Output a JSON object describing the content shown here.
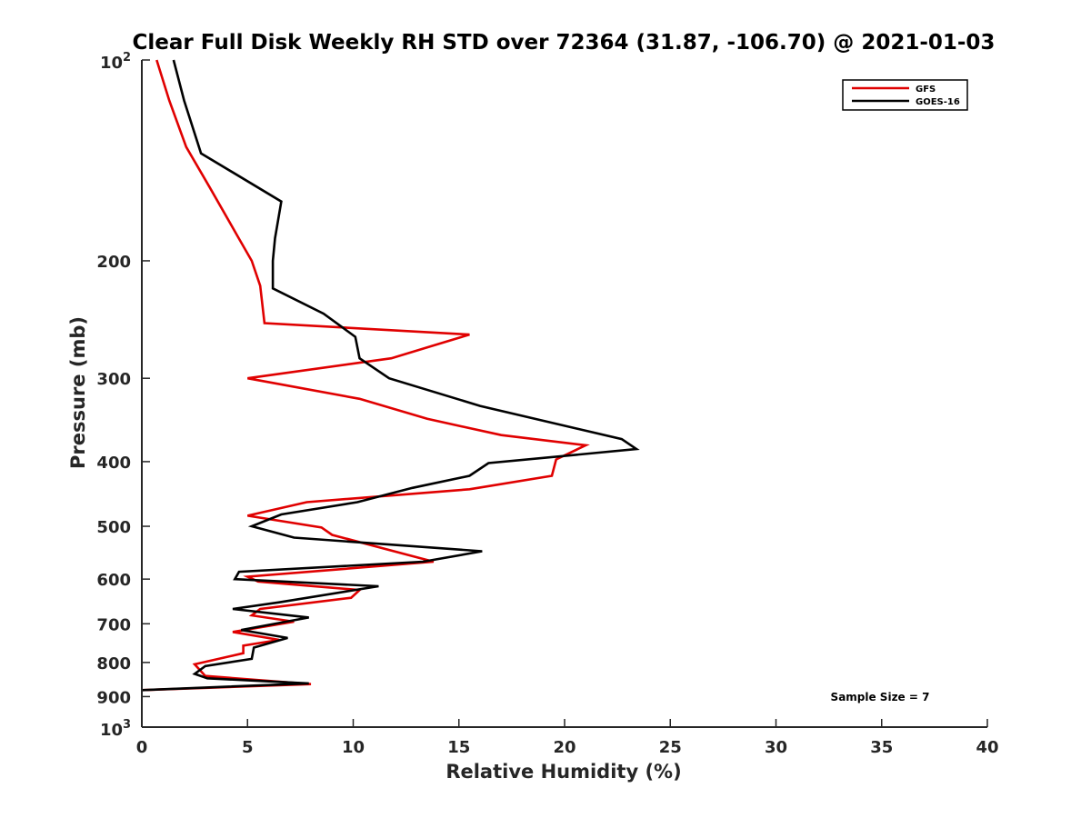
{
  "chart_data": {
    "type": "line",
    "title": "Clear Full Disk Weekly RH STD over 72364 (31.87, -106.70) @ 2021-01-03",
    "xlabel": "Relative Humidity (%)",
    "ylabel": "Pressure (mb)",
    "xlim": [
      0,
      40
    ],
    "ylim": [
      100,
      1000
    ],
    "y_scale": "log",
    "y_reversed": true,
    "x_ticks": [
      "0",
      "5",
      "10",
      "15",
      "20",
      "25",
      "30",
      "35",
      "40"
    ],
    "y_ticks": [
      {
        "value": 100,
        "label": "10",
        "sup": "2"
      },
      {
        "value": 200,
        "label": "200",
        "sup": ""
      },
      {
        "value": 300,
        "label": "300",
        "sup": ""
      },
      {
        "value": 400,
        "label": "400",
        "sup": ""
      },
      {
        "value": 500,
        "label": "500",
        "sup": ""
      },
      {
        "value": 600,
        "label": "600",
        "sup": ""
      },
      {
        "value": 700,
        "label": "700",
        "sup": ""
      },
      {
        "value": 800,
        "label": "800",
        "sup": ""
      },
      {
        "value": 900,
        "label": "900",
        "sup": ""
      },
      {
        "value": 1000,
        "label": "10",
        "sup": "3"
      }
    ],
    "grid": false,
    "legend_position": "top-right",
    "annotation": "Sample Size = 7",
    "series": [
      {
        "name": "GFS",
        "color": "#e00000",
        "points": [
          [
            0.7,
            100
          ],
          [
            1.3,
            115
          ],
          [
            2.1,
            135
          ],
          [
            3.2,
            155
          ],
          [
            4.5,
            183
          ],
          [
            5.2,
            200
          ],
          [
            5.6,
            218
          ],
          [
            5.8,
            248
          ],
          [
            15.5,
            258
          ],
          [
            11.8,
            280
          ],
          [
            5.0,
            300
          ],
          [
            10.3,
            322
          ],
          [
            13.5,
            345
          ],
          [
            17.0,
            365
          ],
          [
            21.0,
            378
          ],
          [
            19.6,
            397
          ],
          [
            19.4,
            420
          ],
          [
            15.5,
            440
          ],
          [
            7.8,
            460
          ],
          [
            5.0,
            482
          ],
          [
            8.5,
            502
          ],
          [
            9.0,
            515
          ],
          [
            12.6,
            552
          ],
          [
            13.8,
            565
          ],
          [
            5.0,
            595
          ],
          [
            5.5,
            605
          ],
          [
            10.3,
            623
          ],
          [
            9.9,
            640
          ],
          [
            5.6,
            665
          ],
          [
            5.2,
            680
          ],
          [
            7.2,
            695
          ],
          [
            4.3,
            720
          ],
          [
            6.5,
            740
          ],
          [
            4.8,
            755
          ],
          [
            4.8,
            775
          ],
          [
            2.5,
            805
          ],
          [
            3.0,
            838
          ],
          [
            8.0,
            862
          ],
          [
            0.0,
            880
          ]
        ]
      },
      {
        "name": "GOES-16",
        "color": "#000000",
        "points": [
          [
            1.5,
            100
          ],
          [
            2.0,
            115
          ],
          [
            2.8,
            138
          ],
          [
            6.6,
            163
          ],
          [
            6.3,
            185
          ],
          [
            6.2,
            200
          ],
          [
            6.2,
            220
          ],
          [
            8.6,
            240
          ],
          [
            10.1,
            260
          ],
          [
            10.3,
            280
          ],
          [
            11.7,
            300
          ],
          [
            16.0,
            330
          ],
          [
            22.7,
            370
          ],
          [
            23.4,
            383
          ],
          [
            16.4,
            402
          ],
          [
            15.5,
            420
          ],
          [
            12.8,
            438
          ],
          [
            10.2,
            460
          ],
          [
            6.6,
            480
          ],
          [
            5.2,
            500
          ],
          [
            7.2,
            520
          ],
          [
            16.1,
            545
          ],
          [
            13.3,
            565
          ],
          [
            4.6,
            585
          ],
          [
            4.4,
            600
          ],
          [
            11.2,
            615
          ],
          [
            6.5,
            650
          ],
          [
            4.3,
            665
          ],
          [
            7.9,
            685
          ],
          [
            4.7,
            715
          ],
          [
            6.9,
            735
          ],
          [
            5.3,
            760
          ],
          [
            5.2,
            790
          ],
          [
            3.0,
            810
          ],
          [
            2.5,
            832
          ],
          [
            3.1,
            845
          ],
          [
            7.9,
            860
          ],
          [
            0.0,
            880
          ]
        ]
      }
    ]
  }
}
